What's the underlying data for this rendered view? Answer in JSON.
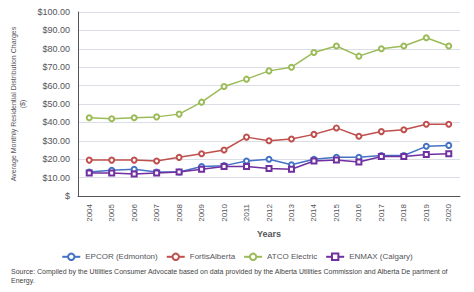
{
  "chart_data": {
    "type": "line",
    "x": [
      2004,
      2005,
      2006,
      2007,
      2008,
      2009,
      2010,
      2011,
      2012,
      2013,
      2014,
      2015,
      2016,
      2017,
      2018,
      2019,
      2020
    ],
    "series": [
      {
        "name": "EPCOR (Edmonton)",
        "color": "#4472C4",
        "marker": "circle",
        "values": [
          13.0,
          14.0,
          14.5,
          13.0,
          13.0,
          16.0,
          16.5,
          19.0,
          20.0,
          17.0,
          20.0,
          21.0,
          21.0,
          22.0,
          22.0,
          27.0,
          27.5
        ]
      },
      {
        "name": "FortisAlberta",
        "color": "#C0504D",
        "marker": "circle",
        "values": [
          19.5,
          19.5,
          19.5,
          19.0,
          21.0,
          23.0,
          25.0,
          32.0,
          30.0,
          31.0,
          33.5,
          37.0,
          32.5,
          35.0,
          36.0,
          39.0,
          39.0
        ]
      },
      {
        "name": "ATCO Electric",
        "color": "#9BBB59",
        "marker": "circle",
        "values": [
          42.5,
          42.0,
          42.5,
          43.0,
          44.5,
          51.0,
          59.5,
          63.5,
          68.0,
          70.0,
          78.0,
          81.5,
          76.0,
          80.0,
          81.5,
          86.0,
          81.5
        ]
      },
      {
        "name": "ENMAX (Calgary)",
        "color": "#7030A0",
        "marker": "square",
        "values": [
          12.5,
          12.5,
          12.0,
          12.5,
          13.0,
          14.5,
          16.0,
          16.0,
          15.0,
          14.5,
          19.0,
          19.5,
          18.5,
          21.5,
          21.5,
          22.5,
          23.0
        ]
      }
    ],
    "xlim": [
      2003.5,
      2020.5
    ],
    "xticks": [
      2004,
      2005,
      2006,
      2007,
      2008,
      2009,
      2010,
      2011,
      2012,
      2013,
      2014,
      2015,
      2016,
      2017,
      2018,
      2019,
      2020
    ],
    "ylim": [
      0,
      100
    ],
    "yticks": [
      {
        "value": 0,
        "label": "$"
      },
      {
        "value": 10,
        "label": "$10.00"
      },
      {
        "value": 20,
        "label": "$20.00"
      },
      {
        "value": 30,
        "label": "$30.00"
      },
      {
        "value": 40,
        "label": "$40.00"
      },
      {
        "value": 50,
        "label": "$50.00"
      },
      {
        "value": 60,
        "label": "$60.00"
      },
      {
        "value": 70,
        "label": "$70.00"
      },
      {
        "value": 80,
        "label": "$80.00"
      },
      {
        "value": 90,
        "label": "$90.00"
      },
      {
        "value": 100,
        "label": "$100.00"
      }
    ],
    "xlabel": "Years",
    "ylabel": "Average Monthly Residential Distribution Charges\n($)",
    "source": "Source: Compiled by the Utilities Consumer Advocate based on data provided by the Alberta Utilities Commission and Alberta De partment of Energy.",
    "grid": "y",
    "legend": "bottom"
  }
}
